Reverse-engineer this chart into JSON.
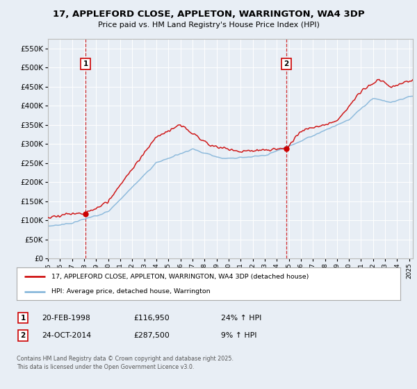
{
  "title": "17, APPLEFORD CLOSE, APPLETON, WARRINGTON, WA4 3DP",
  "subtitle": "Price paid vs. HM Land Registry's House Price Index (HPI)",
  "ylim": [
    0,
    575000
  ],
  "yticks": [
    0,
    50000,
    100000,
    150000,
    200000,
    250000,
    300000,
    350000,
    400000,
    450000,
    500000,
    550000
  ],
  "ytick_labels": [
    "£0",
    "£50K",
    "£100K",
    "£150K",
    "£200K",
    "£250K",
    "£300K",
    "£350K",
    "£400K",
    "£450K",
    "£500K",
    "£550K"
  ],
  "background_color": "#e8eef5",
  "plot_bg_color": "#e8eef5",
  "sale1_date": 1998.13,
  "sale1_price": 116950,
  "sale2_date": 2014.81,
  "sale2_price": 287500,
  "legend_line1": "17, APPLEFORD CLOSE, APPLETON, WARRINGTON, WA4 3DP (detached house)",
  "legend_line2": "HPI: Average price, detached house, Warrington",
  "footer": "Contains HM Land Registry data © Crown copyright and database right 2025.\nThis data is licensed under the Open Government Licence v3.0.",
  "line_color_red": "#cc0000",
  "line_color_blue": "#7fb2d8",
  "grid_color": "#ffffff",
  "vline_color": "#cc0000",
  "marker_box_color": "#cc0000",
  "xlim_start": 1995,
  "xlim_end": 2025.3
}
